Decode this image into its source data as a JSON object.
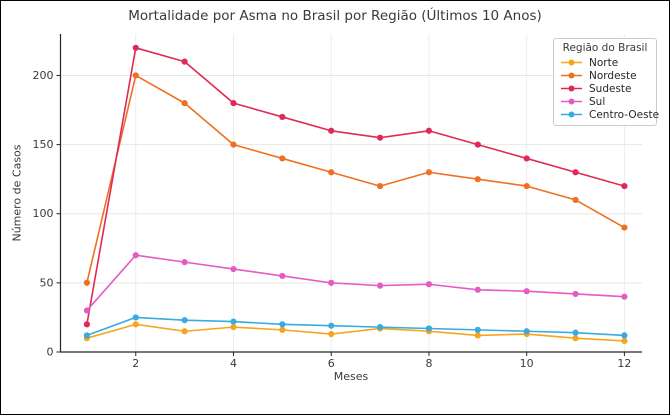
{
  "frame": {
    "background": "#FFFFFF",
    "border_color": "#000000"
  },
  "chart_data": {
    "type": "line",
    "title": "Mortalidade por Asma no Brasil por Região (Últimos 10 Anos)",
    "xlabel": "Meses",
    "ylabel": "Número de Casos",
    "x": [
      1,
      2,
      3,
      4,
      5,
      6,
      7,
      8,
      9,
      10,
      11,
      12
    ],
    "xticks": [
      2,
      4,
      6,
      8,
      10,
      12
    ],
    "yticks": [
      0,
      50,
      100,
      150,
      200
    ],
    "xlim": [
      0.46,
      12.36
    ],
    "ylim": [
      0,
      230
    ],
    "grid": true,
    "legend": {
      "title": "Região do Brasil",
      "position": "top-right"
    },
    "series": [
      {
        "name": "Norte",
        "color": "#F6A51C",
        "values": [
          10,
          20,
          15,
          18,
          16,
          13,
          17,
          15,
          12,
          13,
          10,
          8
        ]
      },
      {
        "name": "Nordeste",
        "color": "#EF7022",
        "values": [
          50,
          200,
          180,
          150,
          140,
          130,
          120,
          130,
          125,
          120,
          110,
          90
        ]
      },
      {
        "name": "Sudeste",
        "color": "#E02A55",
        "values": [
          20,
          220,
          210,
          180,
          170,
          160,
          155,
          160,
          150,
          140,
          130,
          120
        ]
      },
      {
        "name": "Sul",
        "color": "#E45BC3",
        "values": [
          30,
          70,
          65,
          60,
          55,
          50,
          48,
          49,
          45,
          44,
          42,
          40
        ]
      },
      {
        "name": "Centro-Oeste",
        "color": "#38ABE0",
        "values": [
          12,
          25,
          23,
          22,
          20,
          19,
          18,
          17,
          16,
          15,
          14,
          12
        ]
      }
    ],
    "colors": {
      "h_grid": "#E7E7E7",
      "v_grid": "#ECECEC",
      "axis": "#262626",
      "tick_label": "#3B3B3B"
    }
  }
}
